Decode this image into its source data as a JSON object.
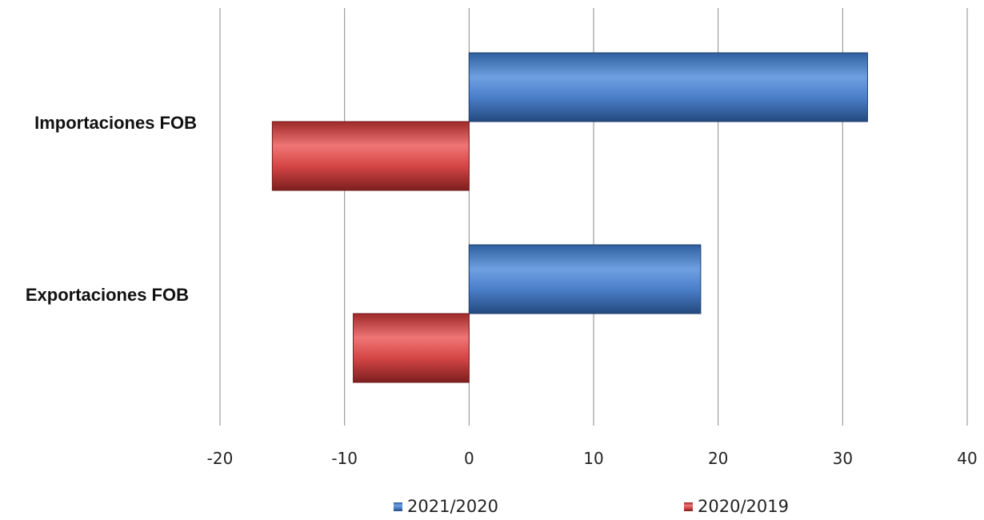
{
  "chart_data": {
    "type": "bar",
    "orientation": "horizontal",
    "categories": [
      "Importaciones FOB",
      "Exportaciones FOB"
    ],
    "series": [
      {
        "name": "2021/2020",
        "color": "#4a7fc9",
        "values": [
          32,
          18.6
        ]
      },
      {
        "name": "2020/2019",
        "color": "#d54545",
        "values": [
          -15.8,
          -9.3
        ]
      }
    ],
    "xlim": [
      -20,
      40
    ],
    "xticks": [
      -20,
      -10,
      0,
      10,
      20,
      30,
      40
    ],
    "grid": "vertical",
    "legend_position": "bottom"
  }
}
